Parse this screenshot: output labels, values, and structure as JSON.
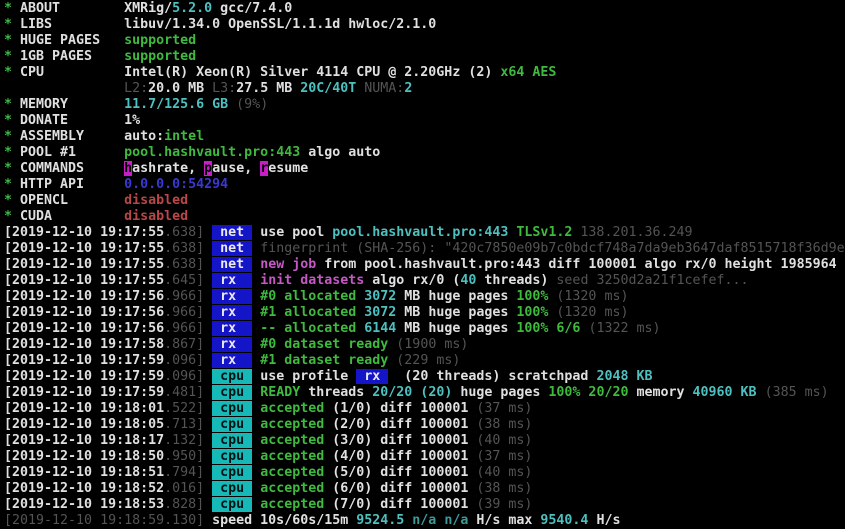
{
  "app": {
    "name": "XMRig terminal output",
    "version_line": "XMRig/5.2.0 gcc/7.4.0"
  },
  "palette": {
    "background": "#000000",
    "text": "#e0e0e0",
    "dim": "#545454",
    "green": "#3fba3f",
    "cyan": "#4ec0c0",
    "magenta": "#c558c5",
    "blue": "#3939cf",
    "red": "#b94747",
    "badge_net_bg": "#1414c8",
    "badge_cpu_bg": "#16b8b8",
    "command_highlight_bg": "#c81ec8"
  },
  "terminal": {
    "lines": [
      {
        "name": "header-about",
        "segs": [
          [
            "g",
            "* "
          ],
          [
            "w",
            "ABOUT        "
          ],
          [
            "w",
            "XMRig/"
          ],
          [
            "c",
            "5.2.0"
          ],
          [
            "w",
            " gcc/7.4.0"
          ]
        ]
      },
      {
        "name": "header-libs",
        "segs": [
          [
            "g",
            "* "
          ],
          [
            "w",
            "LIBS         "
          ],
          [
            "w",
            "libuv/1.34.0 OpenSSL/1.1.1d hwloc/2.1.0"
          ]
        ]
      },
      {
        "name": "header-huge-pages",
        "segs": [
          [
            "g",
            "* "
          ],
          [
            "w",
            "HUGE PAGES   "
          ],
          [
            "g",
            "supported"
          ]
        ]
      },
      {
        "name": "header-1gb-pages",
        "segs": [
          [
            "g",
            "* "
          ],
          [
            "w",
            "1GB PAGES    "
          ],
          [
            "g",
            "supported"
          ]
        ]
      },
      {
        "name": "header-cpu",
        "segs": [
          [
            "g",
            "* "
          ],
          [
            "w",
            "CPU          "
          ],
          [
            "w",
            "Intel(R) Xeon(R) Silver 4114 CPU @ 2.20GHz (2) "
          ],
          [
            "g",
            "x64 AES"
          ]
        ]
      },
      {
        "name": "header-cpu-cache",
        "segs": [
          [
            "dim",
            "               L2:"
          ],
          [
            "w",
            "20.0 MB "
          ],
          [
            "dim",
            "L3:"
          ],
          [
            "w",
            "27.5 MB "
          ],
          [
            "c",
            "20C/40T "
          ],
          [
            "dim",
            "NUMA:"
          ],
          [
            "c",
            "2"
          ]
        ]
      },
      {
        "name": "header-memory",
        "segs": [
          [
            "g",
            "* "
          ],
          [
            "w",
            "MEMORY       "
          ],
          [
            "c",
            "11.7/125.6 GB "
          ],
          [
            "dim",
            "(9%)"
          ]
        ]
      },
      {
        "name": "header-donate",
        "segs": [
          [
            "g",
            "* "
          ],
          [
            "w",
            "DONATE       "
          ],
          [
            "w",
            "1%"
          ]
        ]
      },
      {
        "name": "header-assembly",
        "segs": [
          [
            "g",
            "* "
          ],
          [
            "w",
            "ASSEMBLY     "
          ],
          [
            "w",
            "auto:"
          ],
          [
            "g",
            "intel"
          ]
        ]
      },
      {
        "name": "header-pool",
        "segs": [
          [
            "g",
            "* "
          ],
          [
            "w",
            "POOL #1      "
          ],
          [
            "g",
            "pool.hashvault.pro:443"
          ],
          [
            "w",
            " algo auto"
          ]
        ]
      },
      {
        "name": "header-commands",
        "segs": [
          [
            "g",
            "* "
          ],
          [
            "w",
            "COMMANDS     "
          ],
          [
            "hl",
            "h"
          ],
          [
            "w",
            "ashrate, "
          ],
          [
            "hl",
            "p"
          ],
          [
            "w",
            "ause, "
          ],
          [
            "hl",
            "r"
          ],
          [
            "w",
            "esume"
          ]
        ]
      },
      {
        "name": "header-http-api",
        "segs": [
          [
            "g",
            "* "
          ],
          [
            "w",
            "HTTP API     "
          ],
          [
            "bl",
            "0.0.0.0:54294"
          ]
        ]
      },
      {
        "name": "header-opencl",
        "segs": [
          [
            "g",
            "* "
          ],
          [
            "w",
            "OPENCL       "
          ],
          [
            "r",
            "disabled"
          ]
        ]
      },
      {
        "name": "header-cuda",
        "segs": [
          [
            "g",
            "* "
          ],
          [
            "w",
            "CUDA         "
          ],
          [
            "r",
            "disabled"
          ]
        ]
      },
      {
        "name": "log-net-use-pool",
        "segs": [
          [
            "w",
            "[2019-12-10 19:17:55"
          ],
          [
            "dim",
            ".638] "
          ],
          [
            "bnet",
            " net "
          ],
          [
            "w",
            " use pool "
          ],
          [
            "c",
            "pool.hashvault.pro:443 "
          ],
          [
            "g",
            "TLSv1.2 "
          ],
          [
            "dim",
            "138.201.36.249"
          ]
        ]
      },
      {
        "name": "log-net-fingerprint",
        "segs": [
          [
            "w",
            "[2019-12-10 19:17:55"
          ],
          [
            "dim",
            ".638] "
          ],
          [
            "bnet",
            " net "
          ],
          [
            "dim",
            " fingerprint (SHA-256): \"420c7850e09b7c0bdcf748a7da9eb3647daf8515718f36d9e"
          ]
        ]
      },
      {
        "name": "log-net-new-job",
        "segs": [
          [
            "w",
            "[2019-12-10 19:17:55"
          ],
          [
            "dim",
            ".638] "
          ],
          [
            "bnet",
            " net "
          ],
          [
            "m",
            " new job "
          ],
          [
            "w",
            "from pool.hashvault.pro:443 diff 100001 algo rx/0 height 1985964"
          ]
        ]
      },
      {
        "name": "log-rx-init",
        "segs": [
          [
            "w",
            "[2019-12-10 19:17:55"
          ],
          [
            "dim",
            ".645] "
          ],
          [
            "bnet",
            " rx  "
          ],
          [
            "m",
            " init datasets "
          ],
          [
            "w",
            "algo rx/0 ("
          ],
          [
            "c",
            "40"
          ],
          [
            "w",
            " threads) "
          ],
          [
            "dim",
            "seed 3250d2a21f1cefef..."
          ]
        ]
      },
      {
        "name": "log-rx-alloc-0",
        "segs": [
          [
            "w",
            "[2019-12-10 19:17:56"
          ],
          [
            "dim",
            ".966] "
          ],
          [
            "bnet",
            " rx  "
          ],
          [
            "g",
            " #0 allocated "
          ],
          [
            "c",
            "3072 "
          ],
          [
            "w",
            "MB huge pages "
          ],
          [
            "g",
            "100% "
          ],
          [
            "dim",
            "(1320 ms)"
          ]
        ]
      },
      {
        "name": "log-rx-alloc-1",
        "segs": [
          [
            "w",
            "[2019-12-10 19:17:56"
          ],
          [
            "dim",
            ".966] "
          ],
          [
            "bnet",
            " rx  "
          ],
          [
            "g",
            " #1 allocated "
          ],
          [
            "c",
            "3072 "
          ],
          [
            "w",
            "MB huge pages "
          ],
          [
            "g",
            "100% "
          ],
          [
            "dim",
            "(1320 ms)"
          ]
        ]
      },
      {
        "name": "log-rx-alloc-total",
        "segs": [
          [
            "w",
            "[2019-12-10 19:17:56"
          ],
          [
            "dim",
            ".966] "
          ],
          [
            "bnet",
            " rx  "
          ],
          [
            "g",
            " -- allocated "
          ],
          [
            "c",
            "6144 "
          ],
          [
            "w",
            "MB huge pages "
          ],
          [
            "g",
            "100% 6/6 "
          ],
          [
            "dim",
            "(1322 ms)"
          ]
        ]
      },
      {
        "name": "log-rx-dataset-0",
        "segs": [
          [
            "w",
            "[2019-12-10 19:17:58"
          ],
          [
            "dim",
            ".867] "
          ],
          [
            "bnet",
            " rx  "
          ],
          [
            "g",
            " #0 dataset ready "
          ],
          [
            "dim",
            "(1900 ms)"
          ]
        ]
      },
      {
        "name": "log-rx-dataset-1",
        "segs": [
          [
            "w",
            "[2019-12-10 19:17:59"
          ],
          [
            "dim",
            ".096] "
          ],
          [
            "bnet",
            " rx  "
          ],
          [
            "g",
            " #1 dataset ready "
          ],
          [
            "dim",
            "(229 ms)"
          ]
        ]
      },
      {
        "name": "log-cpu-profile",
        "segs": [
          [
            "w",
            "[2019-12-10 19:17:59"
          ],
          [
            "dim",
            ".096] "
          ],
          [
            "bcpu",
            " cpu "
          ],
          [
            "w",
            " use profile "
          ],
          [
            "bnet",
            " rx "
          ],
          [
            "w",
            "  (20 threads) scratchpad "
          ],
          [
            "c",
            "2048 KB"
          ]
        ]
      },
      {
        "name": "log-cpu-ready",
        "segs": [
          [
            "w",
            "[2019-12-10 19:17:59"
          ],
          [
            "dim",
            ".481] "
          ],
          [
            "bcpu",
            " cpu "
          ],
          [
            "g",
            " READY "
          ],
          [
            "w",
            "threads "
          ],
          [
            "c",
            "20/20 (20) "
          ],
          [
            "w",
            "huge pages "
          ],
          [
            "g",
            "100% 20/20 "
          ],
          [
            "w",
            "memory "
          ],
          [
            "c",
            "40960 KB "
          ],
          [
            "dim",
            "(385 ms)"
          ]
        ]
      },
      {
        "name": "log-cpu-accepted-1",
        "segs": [
          [
            "w",
            "[2019-12-10 19:18:01"
          ],
          [
            "dim",
            ".522] "
          ],
          [
            "bcpu",
            " cpu "
          ],
          [
            "g",
            " accepted "
          ],
          [
            "w",
            "(1/0) diff 100001 "
          ],
          [
            "dim",
            "(37 ms)"
          ]
        ]
      },
      {
        "name": "log-cpu-accepted-2",
        "segs": [
          [
            "w",
            "[2019-12-10 19:18:05"
          ],
          [
            "dim",
            ".713] "
          ],
          [
            "bcpu",
            " cpu "
          ],
          [
            "g",
            " accepted "
          ],
          [
            "w",
            "(2/0) diff 100001 "
          ],
          [
            "dim",
            "(38 ms)"
          ]
        ]
      },
      {
        "name": "log-cpu-accepted-3",
        "segs": [
          [
            "w",
            "[2019-12-10 19:18:17"
          ],
          [
            "dim",
            ".132] "
          ],
          [
            "bcpu",
            " cpu "
          ],
          [
            "g",
            " accepted "
          ],
          [
            "w",
            "(3/0) diff 100001 "
          ],
          [
            "dim",
            "(40 ms)"
          ]
        ]
      },
      {
        "name": "log-cpu-accepted-4",
        "segs": [
          [
            "w",
            "[2019-12-10 19:18:50"
          ],
          [
            "dim",
            ".950] "
          ],
          [
            "bcpu",
            " cpu "
          ],
          [
            "g",
            " accepted "
          ],
          [
            "w",
            "(4/0) diff 100001 "
          ],
          [
            "dim",
            "(37 ms)"
          ]
        ]
      },
      {
        "name": "log-cpu-accepted-5",
        "segs": [
          [
            "w",
            "[2019-12-10 19:18:51"
          ],
          [
            "dim",
            ".794] "
          ],
          [
            "bcpu",
            " cpu "
          ],
          [
            "g",
            " accepted "
          ],
          [
            "w",
            "(5/0) diff 100001 "
          ],
          [
            "dim",
            "(40 ms)"
          ]
        ]
      },
      {
        "name": "log-cpu-accepted-6",
        "segs": [
          [
            "w",
            "[2019-12-10 19:18:52"
          ],
          [
            "dim",
            ".016] "
          ],
          [
            "bcpu",
            " cpu "
          ],
          [
            "g",
            " accepted "
          ],
          [
            "w",
            "(6/0) diff 100001 "
          ],
          [
            "dim",
            "(38 ms)"
          ]
        ]
      },
      {
        "name": "log-cpu-accepted-7",
        "segs": [
          [
            "w",
            "[2019-12-10 19:18:53"
          ],
          [
            "dim",
            ".828] "
          ],
          [
            "bcpu",
            " cpu "
          ],
          [
            "g",
            " accepted "
          ],
          [
            "w",
            "(7/0) diff 100001 "
          ],
          [
            "dim",
            "(39 ms)"
          ]
        ]
      },
      {
        "name": "log-speed",
        "segs": [
          [
            "dim",
            "[2019-12-10 19:18:59.130] "
          ],
          [
            "w",
            "speed 10s/60s/15m "
          ],
          [
            "c",
            "9524.5 "
          ],
          [
            "cd",
            "n/a n/a "
          ],
          [
            "w",
            "H/s max "
          ],
          [
            "c",
            "9540.4 "
          ],
          [
            "w",
            "H/s"
          ]
        ]
      }
    ]
  }
}
